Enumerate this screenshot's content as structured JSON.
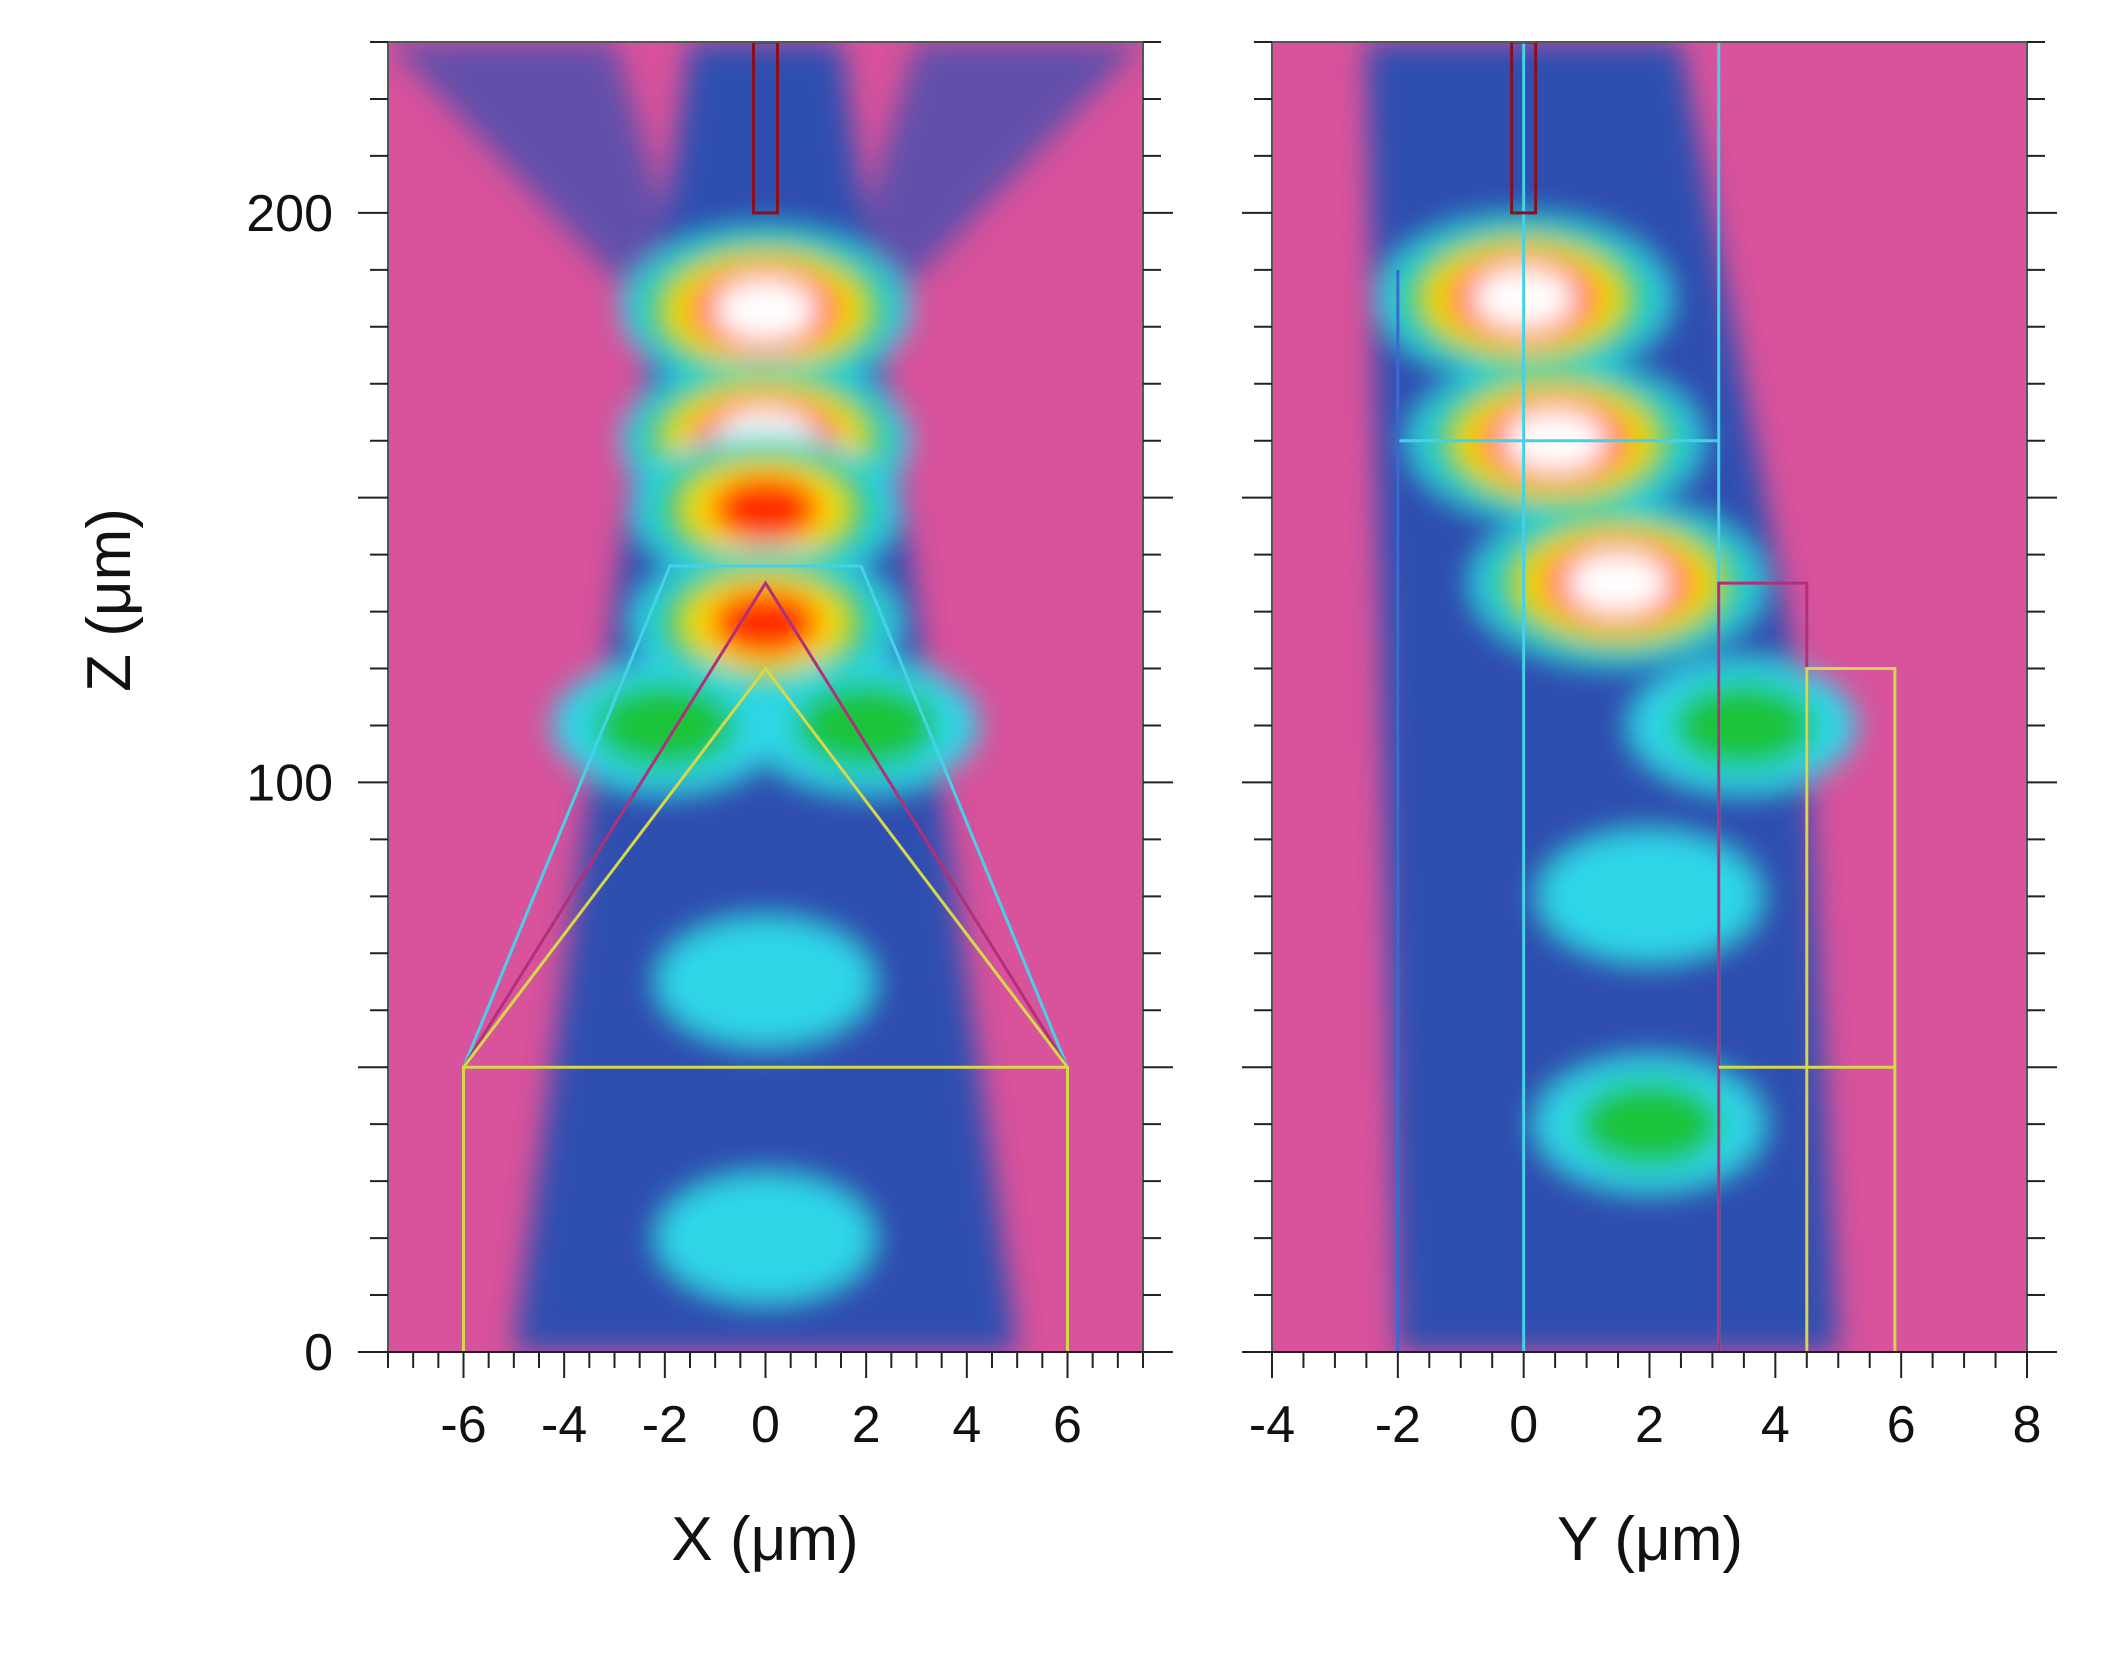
{
  "chart_data": [
    {
      "type": "heatmap",
      "title": "",
      "xlabel": "X (μm)",
      "ylabel": "Z (μm)",
      "xlim": [
        -7.5,
        7.5
      ],
      "ylim": [
        0,
        230
      ],
      "x_ticks": [
        -6,
        -4,
        -2,
        0,
        2,
        4,
        6
      ],
      "y_ticks": [
        0,
        100,
        200
      ],
      "colormap": [
        "#d9529c",
        "#2e4fb0",
        "#2fd7e8",
        "#1fc43a",
        "#ffe600",
        "#ff2a00",
        "#ffffff"
      ],
      "hot_spots": [
        {
          "x": 0,
          "z": 183,
          "level": 1.0
        },
        {
          "x": 0,
          "z": 160,
          "level": 1.0
        },
        {
          "x": 0,
          "z": 148,
          "level": 0.8
        },
        {
          "x": 0,
          "z": 128,
          "level": 0.8
        },
        {
          "x": -2,
          "z": 110,
          "level": 0.45
        },
        {
          "x": 2,
          "z": 110,
          "level": 0.45
        },
        {
          "x": 0,
          "z": 65,
          "level": 0.35
        },
        {
          "x": 0,
          "z": 20,
          "level": 0.35
        }
      ],
      "outlines": [
        {
          "name": "cyan",
          "color": "#46d2e6",
          "points": [
            [
              -6,
              50
            ],
            [
              -1.9,
              138
            ],
            [
              0,
              138
            ],
            [
              1.9,
              138
            ],
            [
              6,
              50
            ]
          ]
        },
        {
          "name": "magenta",
          "color": "#b0307a",
          "points": [
            [
              -6,
              50
            ],
            [
              0,
              135
            ],
            [
              6,
              50
            ]
          ]
        },
        {
          "name": "yellow",
          "color": "#d4d84a",
          "points": [
            [
              -6,
              0
            ],
            [
              -6,
              50
            ],
            [
              0,
              120
            ],
            [
              6,
              50
            ],
            [
              6,
              0
            ]
          ]
        },
        {
          "name": "yellow-base",
          "color": "#d4d84a",
          "points": [
            [
              -6,
              50
            ],
            [
              6,
              50
            ]
          ]
        }
      ]
    },
    {
      "type": "heatmap",
      "title": "",
      "xlabel": "Y (μm)",
      "ylabel": "",
      "xlim": [
        -4,
        8
      ],
      "ylim": [
        0,
        230
      ],
      "x_ticks": [
        -4,
        -2,
        0,
        2,
        4,
        6,
        8
      ],
      "y_ticks": [
        0,
        100,
        200
      ],
      "colormap": [
        "#d9529c",
        "#2e4fb0",
        "#2fd7e8",
        "#1fc43a",
        "#ffe600",
        "#ff2a00",
        "#ffffff"
      ],
      "hot_spots": [
        {
          "y": 0,
          "z": 185,
          "level": 1.0
        },
        {
          "y": 0.5,
          "z": 160,
          "level": 1.0
        },
        {
          "y": 1.5,
          "z": 135,
          "level": 1.0
        },
        {
          "y": 3.5,
          "z": 110,
          "level": 0.45
        },
        {
          "y": 2,
          "z": 80,
          "level": 0.4
        },
        {
          "y": 2,
          "z": 40,
          "level": 0.45
        }
      ],
      "outlines": [
        {
          "name": "cyan-vertical",
          "color": "#46d2e6",
          "points": [
            [
              0,
              0
            ],
            [
              0,
              230
            ]
          ]
        },
        {
          "name": "cyan-right",
          "color": "#46d2e6",
          "points": [
            [
              3.1,
              0
            ],
            [
              3.1,
              230
            ]
          ]
        },
        {
          "name": "cyan-slab",
          "color": "#46d2e6",
          "points": [
            [
              -2,
              160
            ],
            [
              3.1,
              160
            ]
          ]
        },
        {
          "name": "magenta-box",
          "color": "#b0307a",
          "points": [
            [
              3.1,
              0
            ],
            [
              3.1,
              135
            ],
            [
              4.5,
              135
            ],
            [
              4.5,
              0
            ]
          ]
        },
        {
          "name": "yellow-box",
          "color": "#d4d84a",
          "points": [
            [
              4.5,
              0
            ],
            [
              4.5,
              120
            ],
            [
              5.9,
              120
            ],
            [
              5.9,
              0
            ]
          ]
        },
        {
          "name": "yellow-base",
          "color": "#d4d84a",
          "points": [
            [
              3.1,
              50
            ],
            [
              5.9,
              50
            ]
          ]
        },
        {
          "name": "blue-left",
          "color": "#3a6ad0",
          "points": [
            [
              -2,
              0
            ],
            [
              -2,
              190
            ]
          ]
        }
      ]
    }
  ]
}
